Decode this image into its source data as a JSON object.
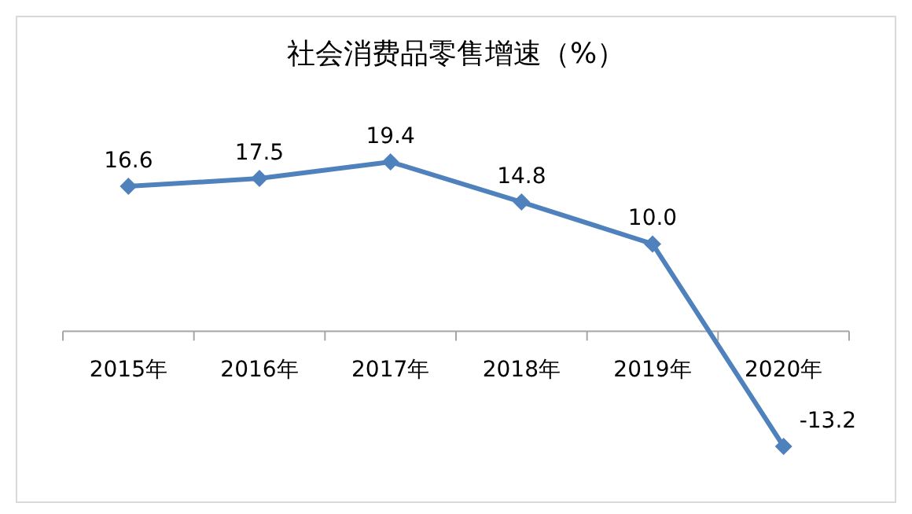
{
  "chart_data": {
    "type": "line",
    "title": "社会消费品零售增速（%）",
    "categories": [
      "2015年",
      "2016年",
      "2017年",
      "2018年",
      "2019年",
      "2020年"
    ],
    "series": [
      {
        "color": "#4f81bd",
        "values": [
          16.6,
          17.5,
          19.4,
          14.8,
          10.0,
          -13.2
        ],
        "value_labels": [
          "16.6",
          "17.5",
          "19.4",
          "14.8",
          "10.0",
          "-13.2"
        ]
      }
    ],
    "marker": "diamond",
    "line_style": "solid"
  }
}
